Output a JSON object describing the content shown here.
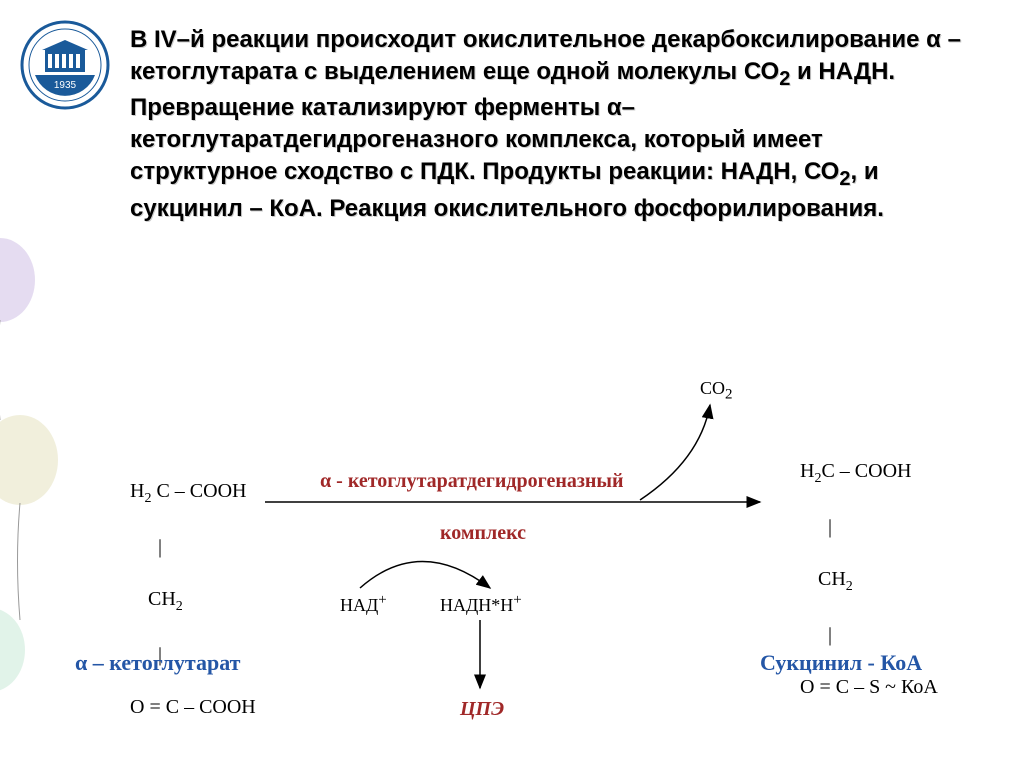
{
  "text": {
    "main": "В IV–й реакции происходит окислительное декарбоксилирование  α – кетоглутарата с выделением еще одной молекулы СО₂ и НАДН. Превращение катализируют ферменты α–кетоглутаратдегидрогеназного комплекса, который имеет структурное сходство с ПДК. Продукты реакции: НАДН, СО₂, и сукцинил – КоА. Реакция окислительного фосфорилирования."
  },
  "diagram": {
    "left_mol": {
      "line1": "H₂ C – COOH",
      "line2": "|",
      "line3": "CH₂",
      "line4": "|",
      "line5": "O = C – COOH"
    },
    "left_label": "α – кетоглутарат",
    "enzyme_top": "α - кетоглутаратдегидрогеназный",
    "enzyme_bot": "комплекс",
    "nad": "НАД⁺",
    "nadh": "НАДН*Н⁺",
    "cpe": "ЦПЭ",
    "co2": "CO₂",
    "right_mol": {
      "line1": "H₂C – COOH",
      "line2": "|",
      "line3": "CH₂",
      "line4": "|",
      "line5": "O = C – S ~ КоА"
    },
    "right_label": "Сукцинил - КоА"
  },
  "colors": {
    "blue": "#2456a6",
    "red": "#a02828",
    "logo_blue": "#1a5a9a",
    "balloon1": "#d4c4e8",
    "balloon2": "#c4e8d4",
    "balloon3": "#e8e4c4"
  },
  "logo": {
    "year": "1935"
  }
}
